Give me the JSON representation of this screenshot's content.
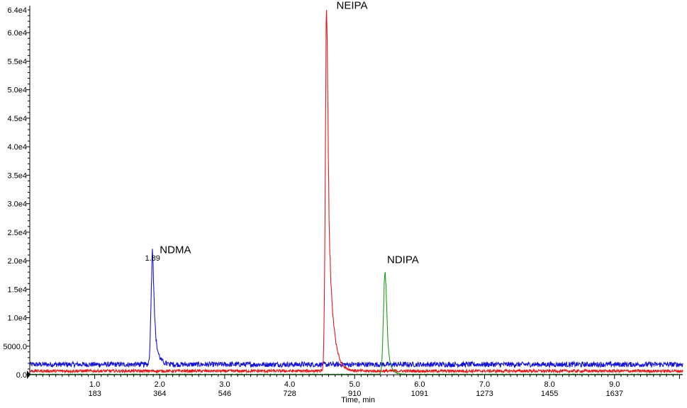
{
  "chart_data": {
    "type": "line",
    "xlabel": "Time, min",
    "xlim": [
      0.0,
      10.05
    ],
    "ylim": [
      0,
      64000
    ],
    "x_ticks": [
      "1.0",
      "2.0",
      "3.0",
      "4.0",
      "5.0",
      "6.0",
      "7.0",
      "8.0",
      "9.0"
    ],
    "x_tick_values": [
      1.0,
      2.0,
      3.0,
      4.0,
      5.0,
      6.0,
      7.0,
      8.0,
      9.0
    ],
    "scan_ticks": [
      "183",
      "364",
      "546",
      "728",
      "910",
      "1091",
      "1273",
      "1455",
      "1637"
    ],
    "y_ticks": [
      "0.0",
      "5000.0",
      "1.0e4",
      "1.5e4",
      "2.0e4",
      "2.5e4",
      "3.0e4",
      "3.5e4",
      "4.0e4",
      "4.5e4",
      "5.0e4",
      "5.5e4",
      "6.0e4",
      "6.4e4"
    ],
    "y_tick_values": [
      0,
      5000,
      10000,
      15000,
      20000,
      25000,
      30000,
      35000,
      40000,
      45000,
      50000,
      55000,
      60000,
      64000
    ],
    "series": [
      {
        "name": "NDMA",
        "color": "#1414d2",
        "baseline": 1800,
        "noise": 450,
        "peak_rt": 1.89,
        "peak_height": 19800,
        "rise_sigma": 0.022,
        "tail_tau": 0.05
      },
      {
        "name": "NEIPA",
        "color": "#e01818",
        "baseline": 650,
        "noise": 250,
        "peak_rt": 4.57,
        "peak_height": 64000,
        "rise_sigma": 0.02,
        "tail_tau": 0.07
      },
      {
        "name": "NDIPA",
        "color": "#1e9a1e",
        "baseline": 60,
        "noise": 60,
        "peak_rt": 5.47,
        "peak_height": 18700,
        "rise_sigma": 0.025,
        "tail_tau": 0.045
      }
    ],
    "annotations": [
      {
        "text": "NDMA",
        "series": "NDMA",
        "x": 2.0,
        "y": 21300
      },
      {
        "text": "NEIPA",
        "series": "NEIPA",
        "x": 4.72,
        "y": 64200
      },
      {
        "text": "NDIPA",
        "series": "NDIPA",
        "x": 5.5,
        "y": 19600
      },
      {
        "text": "1.89",
        "series": "NDMA",
        "x": 1.89,
        "y": 20000
      }
    ]
  }
}
